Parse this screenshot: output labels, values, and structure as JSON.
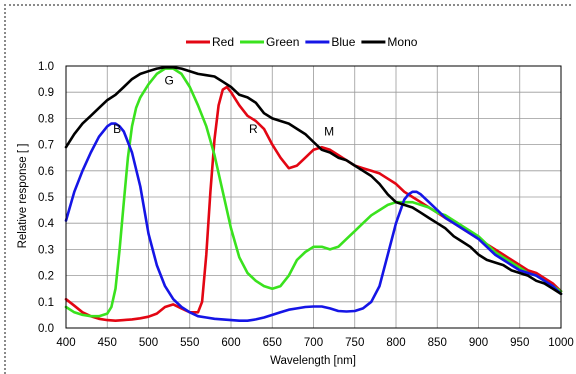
{
  "chart_data": {
    "type": "line",
    "title": "",
    "xlabel": "Wavelength [nm]",
    "ylabel": "Relative response [ ]",
    "xlim": [
      400,
      1000
    ],
    "ylim": [
      0,
      1.0
    ],
    "x_ticks": [
      "400",
      "450",
      "500",
      "550",
      "600",
      "650",
      "700",
      "750",
      "800",
      "850",
      "900",
      "950",
      "1000"
    ],
    "y_ticks": [
      "0.0",
      "0.1",
      "0.2",
      "0.3",
      "0.4",
      "0.5",
      "0.6",
      "0.7",
      "0.8",
      "0.9",
      "1.0"
    ],
    "grid": true,
    "legend_position": "top-center",
    "series": [
      {
        "name": "Red",
        "color": "#e30613",
        "x": [
          400,
          410,
          420,
          430,
          440,
          450,
          460,
          470,
          480,
          490,
          500,
          510,
          520,
          530,
          540,
          550,
          560,
          565,
          570,
          575,
          580,
          585,
          590,
          595,
          600,
          610,
          620,
          630,
          640,
          650,
          660,
          670,
          680,
          690,
          700,
          710,
          720,
          730,
          740,
          750,
          760,
          770,
          780,
          790,
          800,
          810,
          820,
          830,
          840,
          850,
          860,
          870,
          880,
          890,
          900,
          910,
          920,
          930,
          940,
          950,
          960,
          970,
          980,
          990,
          1000
        ],
        "y": [
          0.11,
          0.085,
          0.06,
          0.045,
          0.035,
          0.03,
          0.028,
          0.03,
          0.033,
          0.037,
          0.043,
          0.055,
          0.08,
          0.09,
          0.075,
          0.06,
          0.06,
          0.1,
          0.28,
          0.52,
          0.72,
          0.85,
          0.91,
          0.92,
          0.9,
          0.85,
          0.81,
          0.79,
          0.76,
          0.7,
          0.65,
          0.61,
          0.62,
          0.65,
          0.68,
          0.69,
          0.68,
          0.66,
          0.64,
          0.62,
          0.61,
          0.6,
          0.59,
          0.57,
          0.55,
          0.52,
          0.5,
          0.48,
          0.46,
          0.44,
          0.42,
          0.4,
          0.38,
          0.36,
          0.34,
          0.32,
          0.3,
          0.28,
          0.26,
          0.24,
          0.22,
          0.21,
          0.19,
          0.17,
          0.14
        ]
      },
      {
        "name": "Green",
        "color": "#3ae21e",
        "x": [
          400,
          410,
          420,
          430,
          440,
          450,
          455,
          460,
          465,
          470,
          475,
          480,
          485,
          490,
          500,
          510,
          520,
          530,
          540,
          550,
          560,
          570,
          580,
          590,
          600,
          610,
          620,
          630,
          640,
          650,
          660,
          670,
          680,
          690,
          700,
          710,
          720,
          730,
          740,
          750,
          760,
          770,
          780,
          790,
          800,
          810,
          820,
          830,
          840,
          850,
          860,
          870,
          880,
          890,
          900,
          910,
          920,
          930,
          940,
          950,
          960,
          970,
          980,
          990,
          1000
        ],
        "y": [
          0.08,
          0.06,
          0.05,
          0.045,
          0.045,
          0.055,
          0.08,
          0.15,
          0.3,
          0.48,
          0.65,
          0.77,
          0.84,
          0.88,
          0.93,
          0.97,
          0.99,
          0.99,
          0.97,
          0.92,
          0.85,
          0.77,
          0.66,
          0.52,
          0.38,
          0.27,
          0.21,
          0.18,
          0.16,
          0.15,
          0.16,
          0.2,
          0.26,
          0.29,
          0.31,
          0.31,
          0.3,
          0.31,
          0.34,
          0.37,
          0.4,
          0.43,
          0.45,
          0.47,
          0.48,
          0.48,
          0.48,
          0.47,
          0.46,
          0.44,
          0.43,
          0.41,
          0.39,
          0.37,
          0.35,
          0.32,
          0.29,
          0.27,
          0.25,
          0.23,
          0.21,
          0.2,
          0.18,
          0.16,
          0.14
        ]
      },
      {
        "name": "Blue",
        "color": "#1515e6",
        "x": [
          400,
          410,
          420,
          430,
          440,
          450,
          455,
          460,
          465,
          470,
          480,
          490,
          500,
          510,
          520,
          530,
          540,
          550,
          560,
          570,
          580,
          590,
          600,
          610,
          620,
          630,
          640,
          650,
          660,
          670,
          680,
          690,
          700,
          710,
          720,
          730,
          740,
          750,
          760,
          770,
          780,
          790,
          800,
          810,
          815,
          820,
          825,
          830,
          840,
          850,
          860,
          870,
          880,
          890,
          900,
          910,
          920,
          930,
          940,
          950,
          960,
          970,
          980,
          990,
          1000
        ],
        "y": [
          0.41,
          0.52,
          0.6,
          0.67,
          0.73,
          0.77,
          0.78,
          0.78,
          0.77,
          0.75,
          0.67,
          0.54,
          0.36,
          0.24,
          0.16,
          0.11,
          0.08,
          0.06,
          0.045,
          0.04,
          0.035,
          0.033,
          0.03,
          0.028,
          0.028,
          0.033,
          0.04,
          0.05,
          0.06,
          0.07,
          0.075,
          0.08,
          0.082,
          0.082,
          0.075,
          0.065,
          0.063,
          0.065,
          0.075,
          0.1,
          0.16,
          0.28,
          0.4,
          0.49,
          0.51,
          0.52,
          0.52,
          0.51,
          0.48,
          0.45,
          0.42,
          0.4,
          0.38,
          0.36,
          0.34,
          0.31,
          0.28,
          0.26,
          0.24,
          0.22,
          0.21,
          0.2,
          0.18,
          0.16,
          0.13
        ]
      },
      {
        "name": "Mono",
        "color": "#000000",
        "x": [
          400,
          410,
          420,
          430,
          440,
          450,
          460,
          470,
          480,
          490,
          500,
          510,
          520,
          530,
          540,
          550,
          560,
          570,
          580,
          590,
          600,
          610,
          620,
          630,
          640,
          650,
          660,
          670,
          680,
          690,
          700,
          710,
          720,
          730,
          740,
          750,
          760,
          770,
          780,
          790,
          800,
          810,
          820,
          830,
          840,
          850,
          860,
          870,
          880,
          890,
          900,
          910,
          920,
          930,
          940,
          950,
          960,
          970,
          980,
          990,
          1000
        ],
        "y": [
          0.69,
          0.74,
          0.78,
          0.81,
          0.84,
          0.87,
          0.89,
          0.92,
          0.95,
          0.97,
          0.98,
          0.99,
          0.995,
          0.995,
          0.99,
          0.98,
          0.97,
          0.965,
          0.96,
          0.94,
          0.92,
          0.89,
          0.88,
          0.86,
          0.82,
          0.8,
          0.79,
          0.78,
          0.76,
          0.74,
          0.71,
          0.68,
          0.67,
          0.65,
          0.64,
          0.62,
          0.6,
          0.58,
          0.55,
          0.51,
          0.48,
          0.47,
          0.46,
          0.44,
          0.42,
          0.4,
          0.38,
          0.35,
          0.33,
          0.31,
          0.28,
          0.26,
          0.25,
          0.24,
          0.22,
          0.21,
          0.2,
          0.18,
          0.17,
          0.15,
          0.13
        ]
      }
    ],
    "annotations": [
      {
        "text": "G",
        "x": 525,
        "y": 0.93
      },
      {
        "text": "B",
        "x": 462,
        "y": 0.745
      },
      {
        "text": "R",
        "x": 627,
        "y": 0.745
      },
      {
        "text": "M",
        "x": 719,
        "y": 0.735
      }
    ]
  }
}
